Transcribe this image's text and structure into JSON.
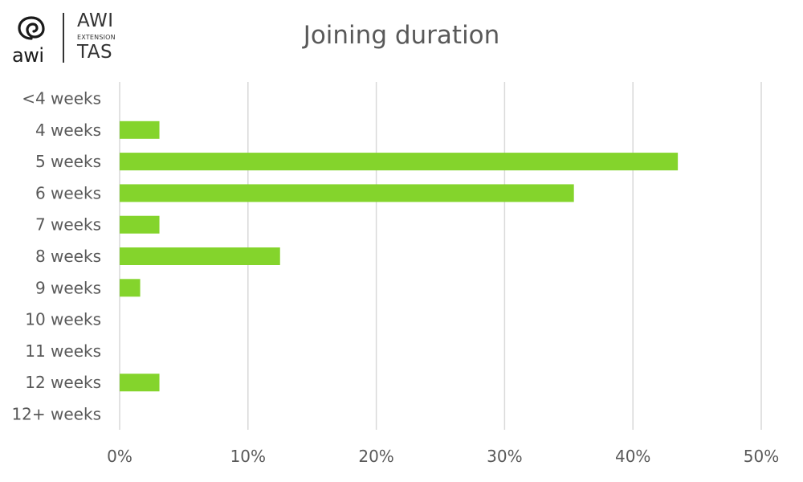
{
  "logo": {
    "brand_word": "awi",
    "lines": [
      "AWI",
      "EXTENSION",
      "TAS"
    ]
  },
  "chart_data": {
    "type": "bar",
    "orientation": "horizontal",
    "title": "Joining duration",
    "categories": [
      "<4 weeks",
      "4 weeks",
      "5 weeks",
      "6 weeks",
      "7 weeks",
      "8 weeks",
      "9 weeks",
      "10 weeks",
      "11 weeks",
      "12 weeks",
      "12+ weeks"
    ],
    "values": [
      0,
      3.1,
      43.5,
      35.4,
      3.1,
      12.5,
      1.6,
      0,
      0,
      3.1,
      0
    ],
    "xlim": [
      0,
      50
    ],
    "xticks": [
      0,
      10,
      20,
      30,
      40,
      50
    ],
    "xtick_labels": [
      "0%",
      "10%",
      "20%",
      "30%",
      "40%",
      "50%"
    ],
    "grid": true,
    "bar_color": "#84d42c",
    "grid_color": "#d9d9d9",
    "text_color": "#595959"
  }
}
